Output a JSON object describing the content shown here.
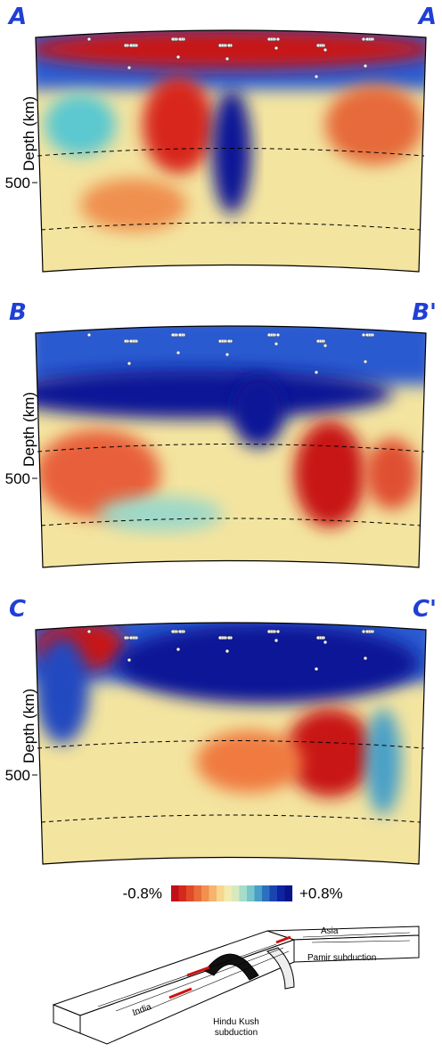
{
  "panels": [
    {
      "label_left": "A",
      "label_right": "A",
      "y_label": "Depth (km)",
      "tick": 500
    },
    {
      "label_left": "B",
      "label_right": "B'",
      "y_label": "Depth (km)",
      "tick": 500
    },
    {
      "label_left": "C",
      "label_right": "C'",
      "y_label": "Depth (km)",
      "tick": 500
    }
  ],
  "colorbar": {
    "min_label": "-0.8%",
    "max_label": "+0.8%"
  },
  "diagram": {
    "asia": "Asia",
    "pamir": "Pamir subduction",
    "india": "India",
    "hindu_kush": [
      "Hindu Kush",
      "subduction"
    ]
  }
}
